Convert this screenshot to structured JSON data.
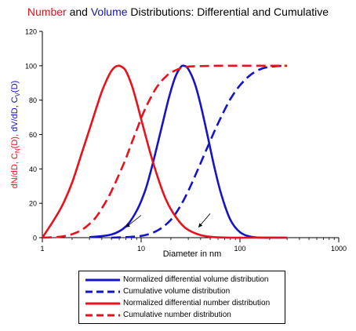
{
  "chart_data": {
    "type": "line",
    "title_parts": [
      {
        "text": "Number",
        "color": "#e8121c"
      },
      {
        "text": " and ",
        "color": "#000000"
      },
      {
        "text": "Volume",
        "color": "#1414b4"
      },
      {
        "text": " Distributions: Differential and Cumulative",
        "color": "#000000"
      }
    ],
    "xlabel": "Diameter in nm",
    "xscale": "log",
    "xlim": [
      1,
      1000
    ],
    "x_ticks": [
      1,
      10,
      100,
      1000
    ],
    "x_tick_labels": [
      "1",
      "10",
      "100",
      "1000"
    ],
    "ylim": [
      0,
      120
    ],
    "y_ticks": [
      0,
      20,
      40,
      60,
      80,
      100,
      120
    ],
    "y_tick_labels": [
      "0",
      "20",
      "40",
      "60",
      "80",
      "100",
      "120"
    ],
    "ylabel_parts": [
      {
        "text": "dN/dD, C",
        "sub": "N",
        "after": "(D), ",
        "color": "#e8121c"
      },
      {
        "text": "dV/dD, C",
        "sub": "V",
        "after": "(D)",
        "color": "#1414b4"
      }
    ],
    "series": [
      {
        "name": "Normalized differential volume distribution",
        "color": "#1414c8",
        "dash": "solid",
        "x": [
          3.0,
          5.0,
          7.0,
          9.0,
          11.0,
          13.0,
          16.0,
          19.0,
          22.0,
          25.0,
          27.0,
          30.0,
          35.0,
          40.0,
          47.0,
          55.0,
          65.0,
          80.0,
          100.0,
          130.0,
          170.0,
          220.0,
          300.0
        ],
        "y": [
          0.3,
          1.8,
          6.5,
          15.6,
          27.5,
          42.3,
          63.4,
          80.9,
          93.0,
          99.0,
          100.0,
          98.1,
          89.5,
          77.3,
          59.4,
          41.2,
          24.8,
          10.4,
          3.2,
          0.5,
          0.0,
          0.0,
          0.0
        ]
      },
      {
        "name": "Cumulative volume distribution",
        "color": "#1414c8",
        "dash": "dashed",
        "x": [
          5.0,
          8.0,
          11.0,
          15.0,
          20.0,
          25.0,
          30.0,
          35.0,
          40.0,
          47.0,
          55.0,
          65.0,
          80.0,
          100.0,
          130.0,
          170.0,
          220.0,
          300.0
        ],
        "y": [
          0.0,
          0.5,
          1.5,
          4.5,
          10.4,
          18.5,
          27.2,
          35.7,
          43.4,
          52.7,
          61.7,
          70.6,
          80.6,
          88.6,
          95.0,
          98.5,
          99.6,
          100.0
        ]
      },
      {
        "name": "Normalized differential number distribution",
        "color": "#e8121c",
        "dash": "solid",
        "x": [
          1.0,
          1.3,
          1.6,
          2.0,
          2.5,
          3.0,
          3.5,
          4.0,
          4.5,
          5.0,
          5.5,
          6.0,
          6.5,
          7.0,
          8.0,
          9.0,
          10.0,
          12.0,
          14.0,
          17.0,
          20.0,
          25.0,
          30.0,
          40.0,
          55.0,
          80.0,
          120.0,
          200.0,
          300.0
        ],
        "y": [
          0.0,
          10.0,
          19.0,
          32.0,
          49.0,
          63.0,
          75.0,
          85.0,
          92.0,
          97.0,
          99.5,
          100.0,
          99.0,
          97.0,
          89.0,
          79.0,
          69.0,
          52.0,
          39.0,
          25.0,
          16.5,
          8.5,
          4.5,
          1.5,
          0.3,
          0.0,
          0.0,
          0.0,
          0.0
        ]
      },
      {
        "name": "Cumulative number distribution",
        "color": "#e8121c",
        "dash": "dashed",
        "x": [
          1.0,
          1.5,
          2.0,
          2.5,
          3.0,
          3.5,
          4.0,
          4.5,
          5.0,
          6.0,
          7.0,
          8.0,
          9.0,
          10.0,
          11.0,
          12.0,
          14.0,
          16.0,
          18.0,
          20.0,
          25.0,
          30.0,
          40.0,
          60.0,
          100.0,
          200.0,
          300.0
        ],
        "y": [
          0.0,
          0.5,
          2.0,
          4.5,
          8.0,
          12.0,
          17.0,
          22.0,
          27.0,
          37.0,
          46.0,
          55.0,
          62.5,
          69.5,
          75.0,
          79.5,
          86.5,
          91.0,
          94.0,
          96.0,
          98.5,
          99.5,
          99.8,
          100.0,
          100.0,
          100.0,
          100.0
        ]
      }
    ],
    "annotations": [
      {
        "type": "arrow",
        "from": [
          10,
          13
        ],
        "to": [
          7,
          6
        ]
      },
      {
        "type": "arrow",
        "from": [
          50,
          14
        ],
        "to": [
          38,
          6
        ]
      }
    ],
    "legend": {
      "position": "below-center",
      "entries": [
        {
          "label": "Normalized differential volume distribution",
          "color": "#1414c8",
          "dash": "solid"
        },
        {
          "label": "Cumulative volume distribution",
          "color": "#1414c8",
          "dash": "dashed"
        },
        {
          "label": "Normalized differential number distribution",
          "color": "#e8121c",
          "dash": "solid"
        },
        {
          "label": "Cumulative number distribution",
          "color": "#e8121c",
          "dash": "dashed"
        }
      ]
    },
    "grid": false
  }
}
